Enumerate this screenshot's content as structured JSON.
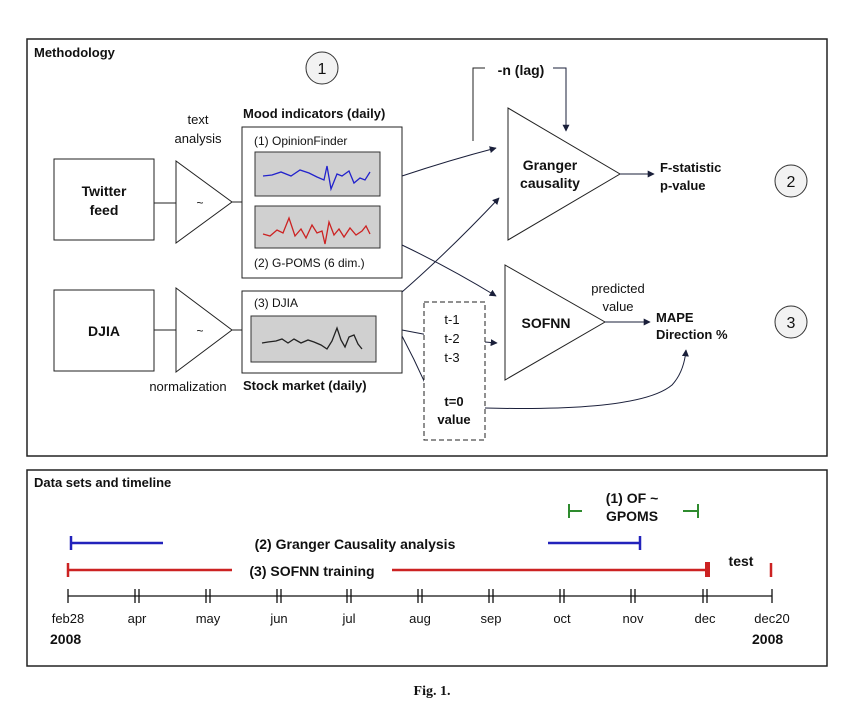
{
  "panel_top": {
    "title": "Methodology",
    "step1": "1",
    "step2": "2",
    "step3": "3",
    "twitter": [
      "Twitter",
      "feed"
    ],
    "djia": "DJIA",
    "text_analysis": [
      "text",
      "analysis"
    ],
    "normalization": "normalization",
    "tilde": "~",
    "mood_title": "Mood indicators (daily)",
    "opinionfinder": "(1) OpinionFinder",
    "gpoms": "(2) G-POMS (6 dim.)",
    "djia_small": "(3) DJIA",
    "stock_title": "Stock market (daily)",
    "lag": "-n (lag)",
    "granger": [
      "Granger",
      "causality"
    ],
    "fstat": [
      "F-statistic",
      "p-value"
    ],
    "sofnn": "SOFNN",
    "predicted": [
      "predicted",
      "value"
    ],
    "mape": [
      "MAPE",
      "Direction %"
    ],
    "lags": [
      "t-1",
      "t-2",
      "t-3"
    ],
    "t0": [
      "t=0",
      "value"
    ],
    "colors": {
      "of_line": "#2222cc",
      "gpoms_line": "#cc2222",
      "djia_line": "#222222",
      "arrow": "#1a1f3a"
    }
  },
  "panel_bottom": {
    "title": "Data sets and timeline",
    "of_gpoms": [
      "(1) OF ~",
      "GPOMS"
    ],
    "granger_label": "(2) Granger Causality analysis",
    "sofnn_label": "(3) SOFNN training",
    "test_label": "test",
    "months": [
      "feb28",
      "apr",
      "may",
      "jun",
      "jul",
      "aug",
      "sep",
      "oct",
      "nov",
      "dec",
      "dec20"
    ],
    "year_start": "2008",
    "year_end": "2008",
    "colors": {
      "granger": "#2222bb",
      "sofnn": "#cc2222",
      "of": "#2e8b2e",
      "axis": "#111111"
    }
  },
  "caption": "Fig. 1."
}
